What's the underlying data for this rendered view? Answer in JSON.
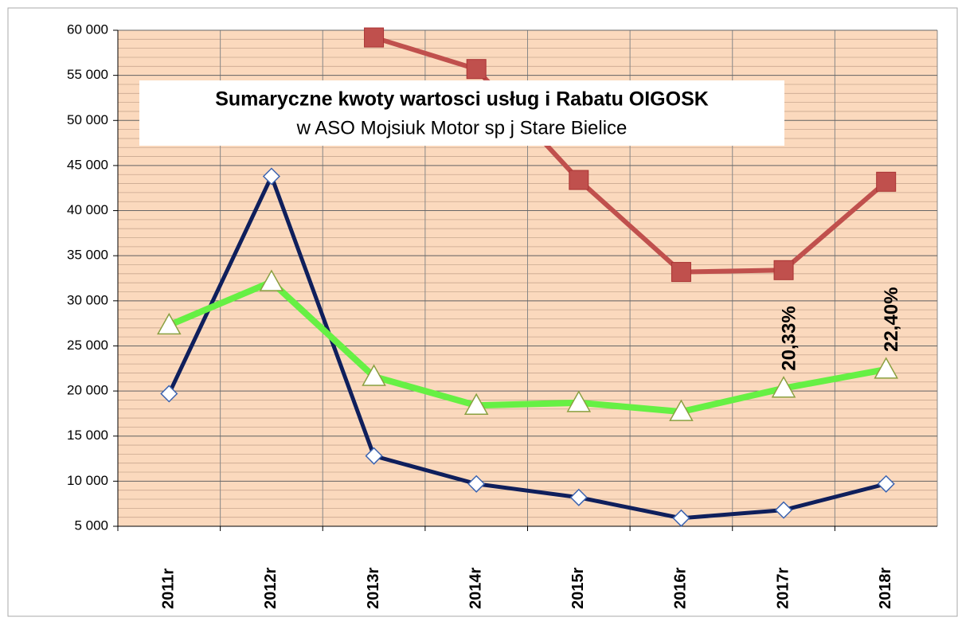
{
  "chart_data": {
    "type": "line",
    "title": "Sumaryczne kwoty wartosci usług i Rabatu OIGOSK",
    "subtitle": "w ASO Mojsiuk Motor sp j Stare Bielice",
    "categories": [
      "2011r",
      "2012r",
      "2013r",
      "2014r",
      "2015r",
      "2016r",
      "2017r",
      "2018r"
    ],
    "series": [
      {
        "color": "#c0504d",
        "marker": "square",
        "values": [
          null,
          null,
          59200,
          55700,
          43400,
          33200,
          33400,
          43200
        ]
      },
      {
        "color": "#0f1f5c",
        "marker": "diamond",
        "values": [
          19700,
          43800,
          12800,
          9700,
          8200,
          5900,
          6800,
          9700
        ]
      },
      {
        "color": "#66f044",
        "marker": "triangle",
        "values": [
          27300,
          32100,
          21600,
          18400,
          18700,
          17700,
          20300,
          22400
        ]
      }
    ],
    "annotations": [
      "20,33%",
      "22,40%"
    ],
    "ylim": [
      5000,
      60000
    ],
    "yticks": [
      {
        "value": 5000,
        "label": "5 000"
      },
      {
        "value": 10000,
        "label": "10 000"
      },
      {
        "value": 15000,
        "label": "15 000"
      },
      {
        "value": 20000,
        "label": "20 000"
      },
      {
        "value": 25000,
        "label": "25 000"
      },
      {
        "value": 30000,
        "label": "30 000"
      },
      {
        "value": 35000,
        "label": "35 000"
      },
      {
        "value": 40000,
        "label": "40 000"
      },
      {
        "value": 45000,
        "label": "45 000"
      },
      {
        "value": 50000,
        "label": "50 000"
      },
      {
        "value": 55000,
        "label": "55 000"
      },
      {
        "value": 60000,
        "label": "60 000"
      }
    ],
    "grid": true
  }
}
